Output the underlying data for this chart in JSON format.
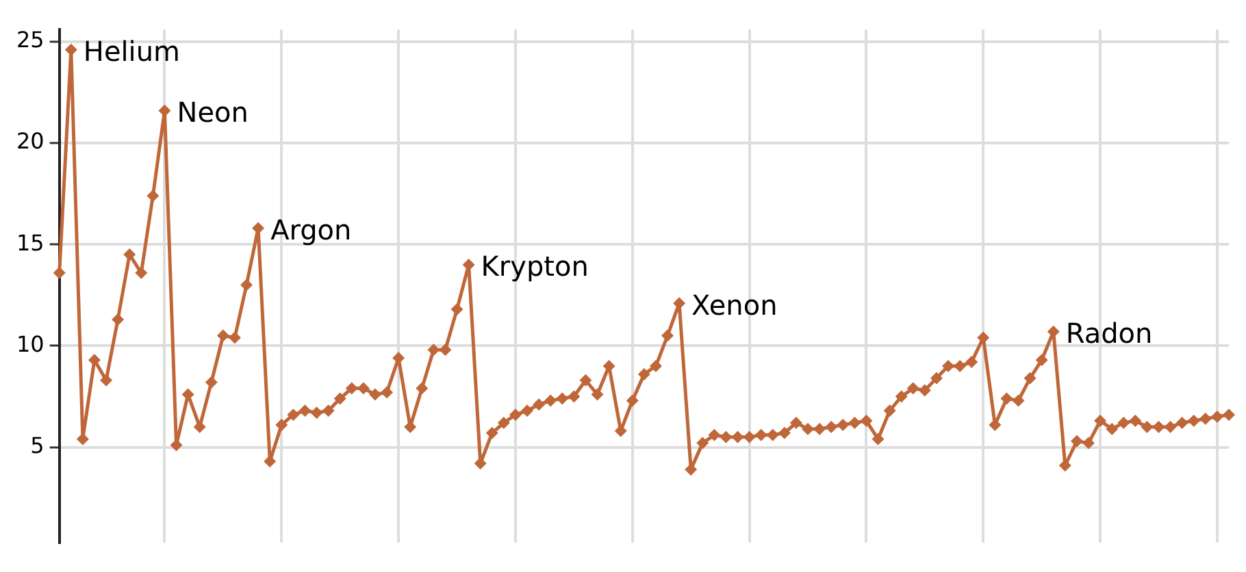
{
  "chart_data": {
    "type": "line",
    "categories": [
      null,
      null,
      null,
      null,
      null,
      null,
      null,
      null,
      null,
      null,
      null,
      null,
      null,
      null,
      null,
      null,
      null,
      null,
      null,
      null,
      null,
      null,
      null,
      null,
      null,
      null,
      null,
      null,
      null,
      null,
      null,
      null,
      null,
      null,
      null,
      null,
      null,
      null,
      null,
      null,
      null,
      null,
      null,
      null,
      null,
      null,
      null,
      null,
      null,
      null,
      null,
      null,
      null,
      null,
      null,
      null,
      null,
      null,
      null,
      null,
      null,
      null,
      null,
      null,
      null,
      null,
      null,
      null,
      null,
      null,
      null,
      null,
      null,
      null,
      null,
      null,
      null,
      null,
      null,
      null,
      null,
      null,
      null,
      null,
      null,
      null,
      null,
      null,
      null,
      null,
      null,
      null,
      null,
      null,
      null,
      null,
      null,
      null,
      null,
      null,
      null
    ],
    "series": [
      {
        "color": "#c0673a",
        "values": [
          13.6,
          24.6,
          5.4,
          9.3,
          8.3,
          11.3,
          14.5,
          13.6,
          17.4,
          21.6,
          5.1,
          7.6,
          6.0,
          8.2,
          10.5,
          10.4,
          13.0,
          15.8,
          4.3,
          6.1,
          6.6,
          6.8,
          6.7,
          6.8,
          7.4,
          7.9,
          7.9,
          7.6,
          7.7,
          9.4,
          6.0,
          7.9,
          9.8,
          9.8,
          11.8,
          14.0,
          4.2,
          5.7,
          6.2,
          6.6,
          6.8,
          7.1,
          7.3,
          7.4,
          7.5,
          8.3,
          7.6,
          9.0,
          5.8,
          7.3,
          8.6,
          9.0,
          10.5,
          12.1,
          3.9,
          5.2,
          5.6,
          5.5,
          5.5,
          5.5,
          5.6,
          5.6,
          5.7,
          6.2,
          5.9,
          5.9,
          6.0,
          6.1,
          6.2,
          6.3,
          5.4,
          6.8,
          7.5,
          7.9,
          7.8,
          8.4,
          9.0,
          9.0,
          9.2,
          10.4,
          6.1,
          7.4,
          7.3,
          8.4,
          9.3,
          10.7,
          4.1,
          5.3,
          5.2,
          6.3,
          5.9,
          6.2,
          6.3,
          6.0,
          6.0,
          6.0,
          6.2,
          6.3,
          6.4,
          6.5,
          6.6
        ]
      }
    ],
    "ylim": [
      0.3,
      25.6
    ],
    "yticks": [
      5,
      10,
      15,
      20,
      25
    ],
    "tick_labels": "y",
    "grid": true,
    "marker": "diamond",
    "line_style": "solid",
    "value_labels": [
      null,
      "Helium",
      null,
      null,
      null,
      null,
      null,
      null,
      null,
      "Neon",
      null,
      null,
      null,
      null,
      null,
      null,
      null,
      "Argon",
      null,
      null,
      null,
      null,
      null,
      null,
      null,
      null,
      null,
      null,
      null,
      null,
      null,
      null,
      null,
      null,
      null,
      "Krypton",
      null,
      null,
      null,
      null,
      null,
      null,
      null,
      null,
      null,
      null,
      null,
      null,
      null,
      null,
      null,
      null,
      null,
      "Xenon",
      null,
      null,
      null,
      null,
      null,
      null,
      null,
      null,
      null,
      null,
      null,
      null,
      null,
      null,
      null,
      null,
      null,
      null,
      null,
      null,
      null,
      null,
      null,
      null,
      null,
      null,
      null,
      null,
      null,
      null,
      null,
      "Radon",
      null,
      null,
      null,
      null,
      null,
      null,
      null,
      null,
      null,
      null,
      null,
      null,
      null,
      null,
      null
    ]
  }
}
